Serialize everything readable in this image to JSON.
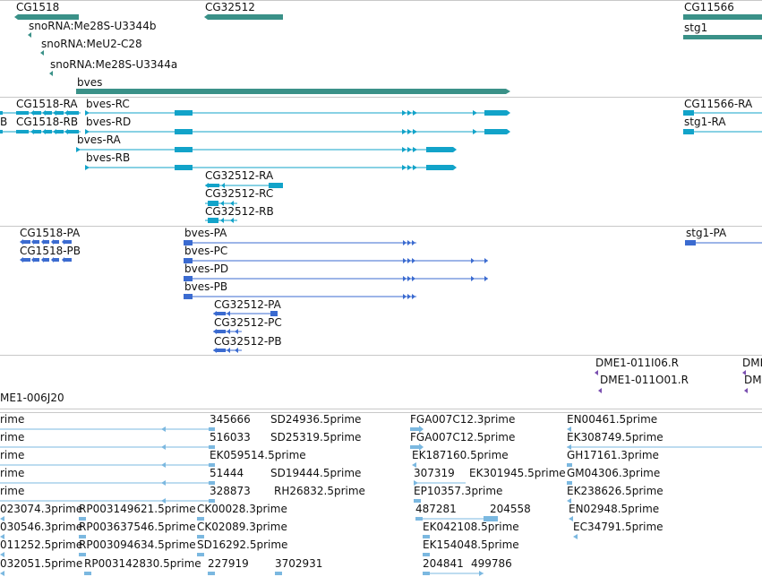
{
  "colors": {
    "gene": "#3a9188",
    "transcript": "#12a3c9",
    "protein": "#3b6bd0",
    "clone": "#7a4fb0",
    "est": "#7bb8e0",
    "separator": "#c8c8c8",
    "text": "#111111"
  },
  "tracks": {
    "genes": {
      "labels": [
        "CG1518",
        "CG32512",
        "CG11566",
        "snoRNA:Me28S-U3344b",
        "snoRNA:MeU2-C28",
        "snoRNA:Me28S-U3344a",
        "bves",
        "stg1"
      ]
    },
    "transcripts": {
      "labels": [
        "CG1518-RA",
        "CG1518-RB",
        "bves-RC",
        "bves-RD",
        "bves-RA",
        "bves-RB",
        "CG32512-RA",
        "CG32512-RC",
        "CG32512-RB",
        "CG11566-RA",
        "stg1-RA",
        "B"
      ]
    },
    "proteins": {
      "labels": [
        "CG1518-PA",
        "CG1518-PB",
        "bves-PA",
        "bves-PC",
        "bves-PD",
        "bves-PB",
        "CG32512-PA",
        "CG32512-PC",
        "CG32512-PB",
        "stg1-PA"
      ]
    },
    "clones": {
      "labels": [
        "DME1-011I06.R",
        "DME1-011O01.R",
        "DME",
        "DM",
        "ME1-006J20"
      ]
    },
    "ests": {
      "labels": [
        "rime",
        "rime",
        "rime",
        "rime",
        "rime",
        "345666",
        "516033",
        "EK059514.5prime",
        "51444",
        "328873",
        "SD24936.5prime",
        "SD25319.5prime",
        "SD19444.5prime",
        "RH26832.5prime",
        "FGA007C12.3prime",
        "FGA007C12.5prime",
        "EK187160.5prime",
        "307319",
        "EK301945.5prime",
        "EP10357.3prime",
        "EN00461.5prime",
        "EK308749.5prime",
        "GH17161.3prime",
        "GM04306.3prime",
        "EK238626.5prime",
        "023074.3prime",
        "RP003149621.5prime",
        "CK00028.3prime",
        "030546.3prime",
        "RP003637546.5prime",
        "CK02089.3prime",
        "011252.5prime",
        "RP003094634.5prime",
        "SD16292.5prime",
        "032051.5prime",
        "RP003142830.5prime",
        "227919",
        "3702931",
        "487281",
        "204558",
        "EN02948.5prime",
        "EK042108.5prime",
        "EC34791.5prime",
        "EK154048.5prime",
        "204841",
        "499786"
      ]
    }
  }
}
